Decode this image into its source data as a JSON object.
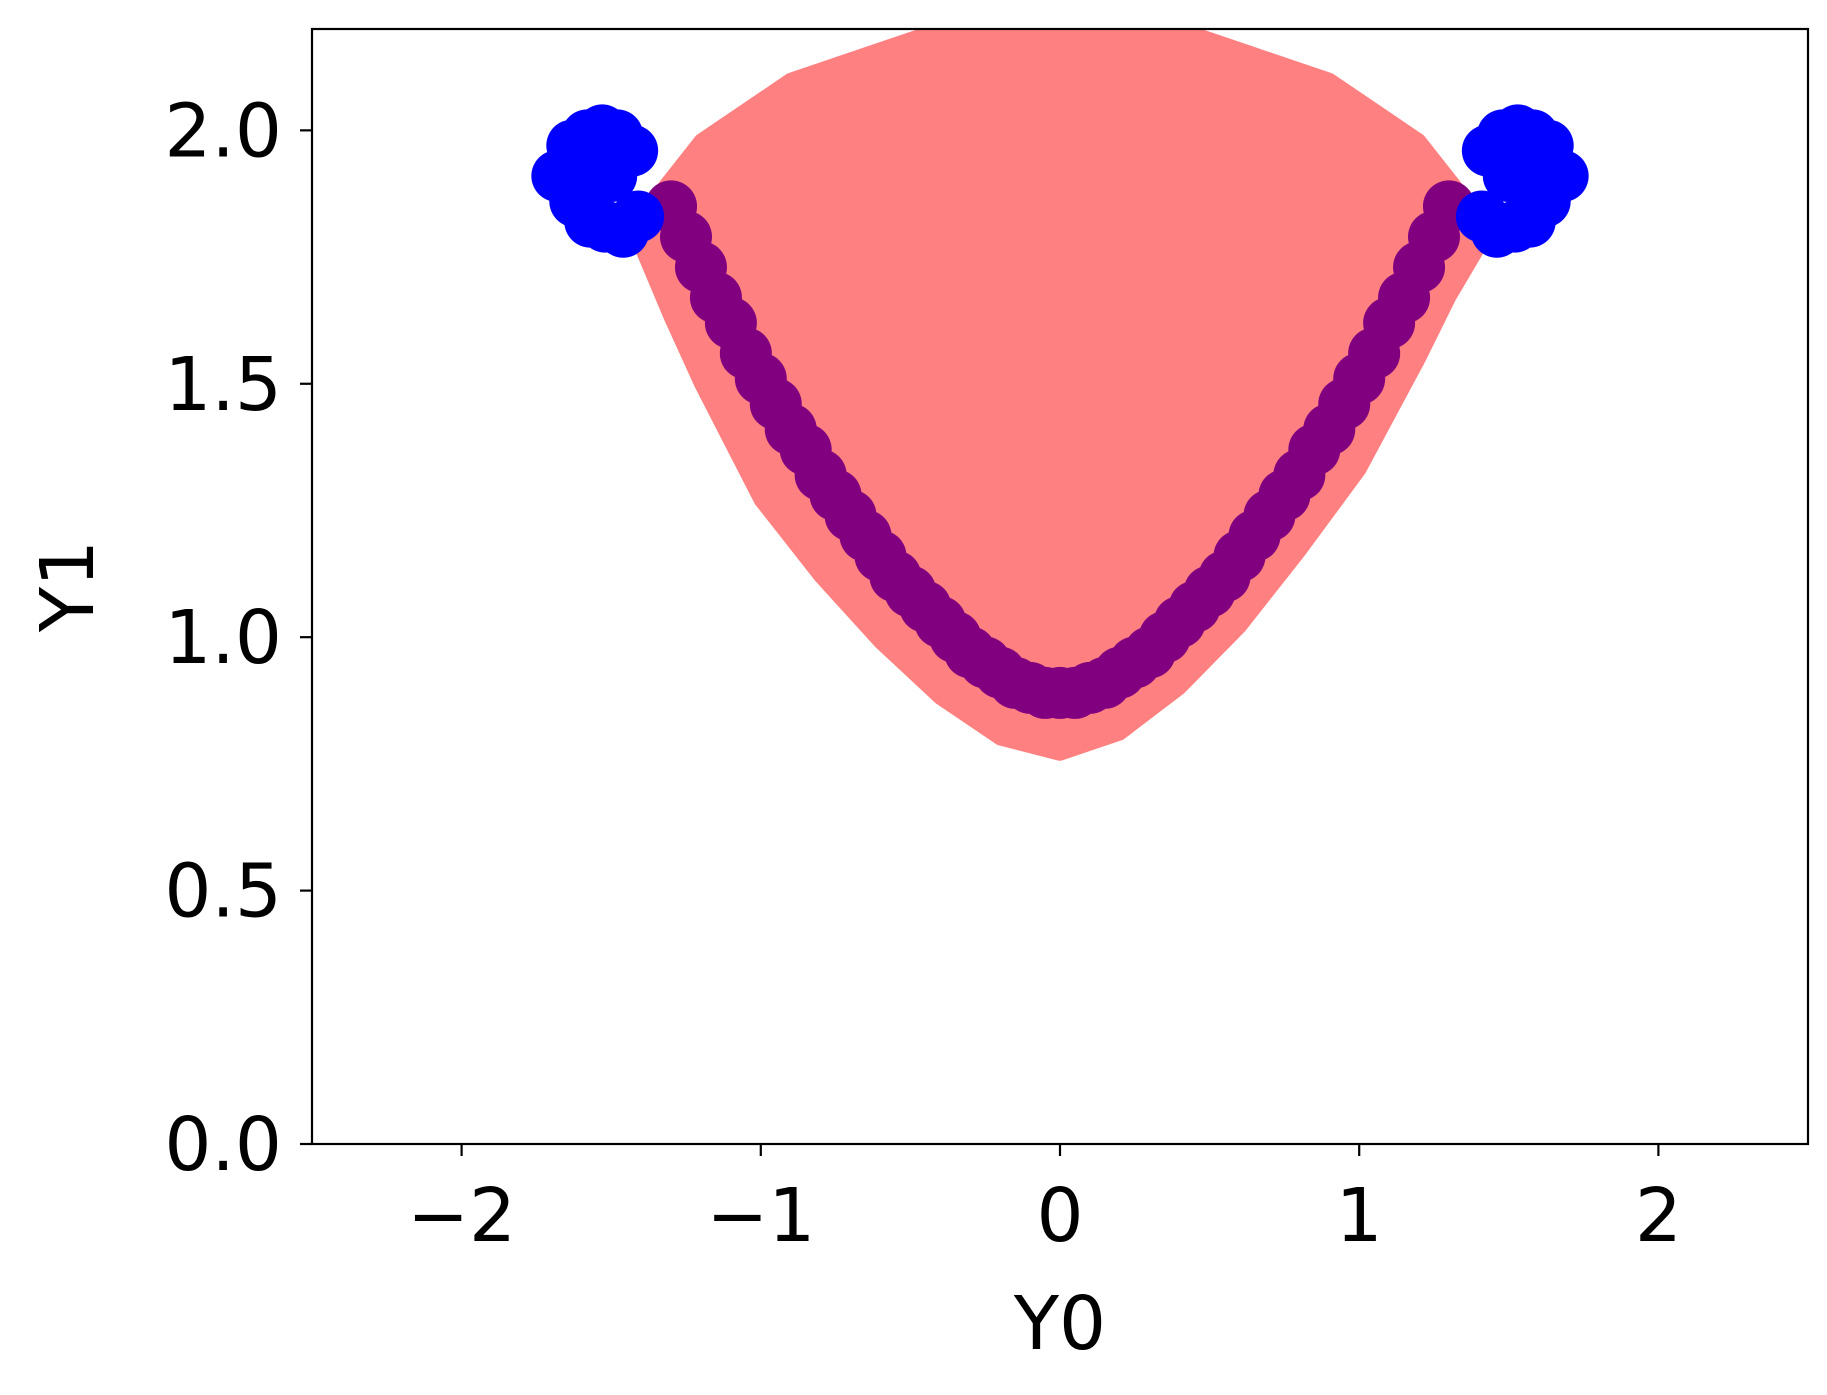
{
  "chart_data": {
    "type": "scatter",
    "title": "",
    "xlabel": "Y0",
    "ylabel": "Y1",
    "xlim": [
      -2.5,
      2.5
    ],
    "ylim": [
      0.0,
      2.2
    ],
    "xticks": [
      -2,
      -1,
      0,
      1,
      2
    ],
    "xtick_labels": [
      "−2",
      "−1",
      "0",
      "1",
      "2"
    ],
    "yticks": [
      0.0,
      0.5,
      1.0,
      1.5,
      2.0
    ],
    "ytick_labels": [
      "0.0",
      "0.5",
      "1.0",
      "1.5",
      "2.0"
    ],
    "grid": false,
    "legend": null,
    "series": [
      {
        "color": "#ff8080",
        "kind": "filled-region",
        "upper_edge": [
          [
            -1.4,
            1.83
          ],
          [
            -1.2,
            1.98
          ],
          [
            -0.9,
            2.1
          ],
          [
            -0.6,
            2.16
          ],
          [
            -0.4,
            2.2
          ],
          [
            0.4,
            2.2
          ],
          [
            0.6,
            2.16
          ],
          [
            0.9,
            2.1
          ],
          [
            1.2,
            1.98
          ],
          [
            1.4,
            1.83
          ]
        ],
        "lower_edge": [
          [
            1.4,
            1.77
          ],
          [
            1.3,
            1.67
          ],
          [
            1.2,
            1.55
          ],
          [
            1.0,
            1.33
          ],
          [
            0.8,
            1.17
          ],
          [
            0.6,
            1.02
          ],
          [
            0.4,
            0.9
          ],
          [
            0.2,
            0.81
          ],
          [
            0.0,
            0.77
          ],
          [
            -0.2,
            0.8
          ],
          [
            -0.4,
            0.88
          ],
          [
            -0.6,
            0.99
          ],
          [
            -0.8,
            1.12
          ],
          [
            -1.0,
            1.27
          ],
          [
            -1.2,
            1.5
          ],
          [
            -1.3,
            1.63
          ],
          [
            -1.4,
            1.77
          ]
        ]
      },
      {
        "color": "#800080",
        "kind": "points",
        "points": [
          [
            -1.3,
            1.85
          ],
          [
            -1.25,
            1.79
          ],
          [
            -1.2,
            1.73
          ],
          [
            -1.15,
            1.67
          ],
          [
            -1.1,
            1.62
          ],
          [
            -1.05,
            1.56
          ],
          [
            -1.0,
            1.51
          ],
          [
            -0.95,
            1.46
          ],
          [
            -0.9,
            1.41
          ],
          [
            -0.85,
            1.37
          ],
          [
            -0.8,
            1.32
          ],
          [
            -0.75,
            1.28
          ],
          [
            -0.7,
            1.24
          ],
          [
            -0.65,
            1.2
          ],
          [
            -0.6,
            1.16
          ],
          [
            -0.55,
            1.12
          ],
          [
            -0.5,
            1.09
          ],
          [
            -0.45,
            1.06
          ],
          [
            -0.4,
            1.03
          ],
          [
            -0.35,
            1.0
          ],
          [
            -0.3,
            0.97
          ],
          [
            -0.25,
            0.95
          ],
          [
            -0.2,
            0.93
          ],
          [
            -0.15,
            0.91
          ],
          [
            -0.1,
            0.9
          ],
          [
            -0.05,
            0.89
          ],
          [
            0.0,
            0.89
          ],
          [
            0.05,
            0.89
          ],
          [
            0.1,
            0.9
          ],
          [
            0.15,
            0.91
          ],
          [
            0.2,
            0.93
          ],
          [
            0.25,
            0.95
          ],
          [
            0.3,
            0.97
          ],
          [
            0.35,
            1.0
          ],
          [
            0.4,
            1.03
          ],
          [
            0.45,
            1.06
          ],
          [
            0.5,
            1.09
          ],
          [
            0.55,
            1.12
          ],
          [
            0.6,
            1.16
          ],
          [
            0.65,
            1.2
          ],
          [
            0.7,
            1.24
          ],
          [
            0.75,
            1.28
          ],
          [
            0.8,
            1.32
          ],
          [
            0.85,
            1.37
          ],
          [
            0.9,
            1.41
          ],
          [
            0.95,
            1.46
          ],
          [
            1.0,
            1.51
          ],
          [
            1.05,
            1.56
          ],
          [
            1.1,
            1.62
          ],
          [
            1.15,
            1.67
          ],
          [
            1.2,
            1.73
          ],
          [
            1.25,
            1.79
          ],
          [
            1.3,
            1.85
          ]
        ]
      },
      {
        "color": "#0000ff",
        "kind": "points",
        "points": [
          [
            -1.68,
            1.91
          ],
          [
            -1.63,
            1.97
          ],
          [
            -1.58,
            1.99
          ],
          [
            -1.53,
            2.0
          ],
          [
            -1.48,
            1.99
          ],
          [
            -1.43,
            1.96
          ],
          [
            -1.62,
            1.86
          ],
          [
            -1.57,
            1.82
          ],
          [
            -1.52,
            1.81
          ],
          [
            -1.46,
            1.8
          ],
          [
            -1.41,
            1.83
          ],
          [
            -1.6,
            1.93
          ],
          [
            -1.5,
            1.91
          ],
          [
            1.68,
            1.91
          ],
          [
            1.63,
            1.97
          ],
          [
            1.58,
            1.99
          ],
          [
            1.53,
            2.0
          ],
          [
            1.48,
            1.99
          ],
          [
            1.43,
            1.96
          ],
          [
            1.62,
            1.86
          ],
          [
            1.57,
            1.82
          ],
          [
            1.52,
            1.81
          ],
          [
            1.46,
            1.8
          ],
          [
            1.41,
            1.83
          ],
          [
            1.6,
            1.93
          ],
          [
            1.5,
            1.91
          ]
        ]
      }
    ]
  }
}
